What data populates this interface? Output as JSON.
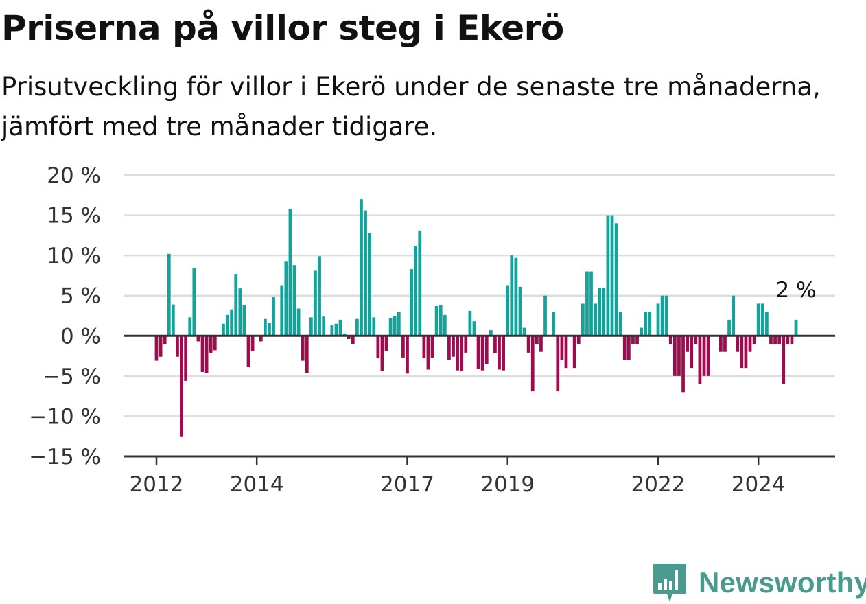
{
  "header": {
    "title": "Priserna på villor steg i Ekerö",
    "subtitle": "Prisutveckling för villor i Ekerö under de senaste tre månaderna, jämfört med tre månader tidigare."
  },
  "brand": {
    "name": "Newsworthy",
    "icon": "newsworthy-logo-icon"
  },
  "colors": {
    "positive": "#13a39a",
    "negative": "#9b0d4f",
    "grid": "#dddddd",
    "axis": "#333333"
  },
  "chart_data": {
    "type": "bar",
    "title": "Priserna på villor steg i Ekerö",
    "subtitle": "Prisutveckling för villor i Ekerö under de senaste tre månaderna, jämfört med tre månader tidigare.",
    "xlabel": "",
    "ylabel": "",
    "unit": "%",
    "ylim": [
      -15,
      20
    ],
    "yticks": [
      20,
      15,
      10,
      5,
      0,
      -5,
      -10,
      -15
    ],
    "ytick_labels": [
      "20 %",
      "15 %",
      "10 %",
      "5 %",
      "0 %",
      "−5 %",
      "−10 %",
      "−15 %"
    ],
    "xticks": [
      {
        "label": "2012",
        "year": 2012.0
      },
      {
        "label": "2014",
        "year": 2014.0
      },
      {
        "label": "2017",
        "year": 2017.0
      },
      {
        "label": "2019",
        "year": 2019.0
      },
      {
        "label": "2022",
        "year": 2022.0
      },
      {
        "label": "2024",
        "year": 2024.0
      }
    ],
    "series_start": "2012-01",
    "frequency": "monthly",
    "grid": true,
    "last_value_label": "2 %",
    "values": [
      -3.1,
      -2.6,
      -1.0,
      10.2,
      3.9,
      -2.6,
      -12.5,
      -5.6,
      2.3,
      8.4,
      -0.7,
      -4.5,
      -4.6,
      -2.1,
      -1.8,
      null,
      1.5,
      2.6,
      3.3,
      7.7,
      5.9,
      3.8,
      -3.9,
      -1.9,
      null,
      -0.7,
      2.1,
      1.6,
      4.8,
      null,
      6.3,
      9.3,
      15.8,
      8.8,
      3.4,
      -3.1,
      -4.6,
      2.3,
      8.1,
      9.9,
      2.4,
      null,
      1.3,
      1.5,
      2.0,
      0.3,
      -0.4,
      -1.0,
      2.1,
      17.0,
      15.6,
      12.8,
      2.3,
      -2.8,
      -4.4,
      -1.9,
      2.2,
      2.5,
      3.0,
      -2.7,
      -4.7,
      8.3,
      11.2,
      13.1,
      -2.8,
      -4.2,
      -2.7,
      3.7,
      3.8,
      2.6,
      -3.0,
      -2.6,
      -4.3,
      -4.4,
      -2.1,
      3.1,
      1.8,
      -4.1,
      -4.3,
      -3.5,
      0.7,
      -2.2,
      -4.2,
      -4.3,
      6.3,
      10.0,
      9.7,
      6.1,
      1.0,
      -2.1,
      -6.9,
      -1.0,
      -2.0,
      5.0,
      null,
      3.0,
      -6.9,
      -3.0,
      -4.0,
      null,
      -4.0,
      -1.0,
      4.0,
      8.0,
      8.0,
      4.0,
      6.0,
      6.0,
      15.0,
      15.0,
      14.0,
      3.0,
      -3.0,
      -3.0,
      -1.0,
      -1.0,
      1.0,
      3.0,
      3.0,
      null,
      4.0,
      5.0,
      5.0,
      -1.0,
      -5.0,
      -5.0,
      -7.0,
      -2.0,
      -4.0,
      -1.0,
      -6.0,
      -5.0,
      -5.0,
      null,
      null,
      -2.0,
      -2.0,
      2.0,
      5.0,
      -2.0,
      -4.0,
      -4.0,
      -2.0,
      -1.0,
      4.0,
      4.0,
      3.0,
      -1.0,
      -1.0,
      -1.0,
      -6.0,
      -1.0,
      -1.0,
      2.0
    ]
  }
}
